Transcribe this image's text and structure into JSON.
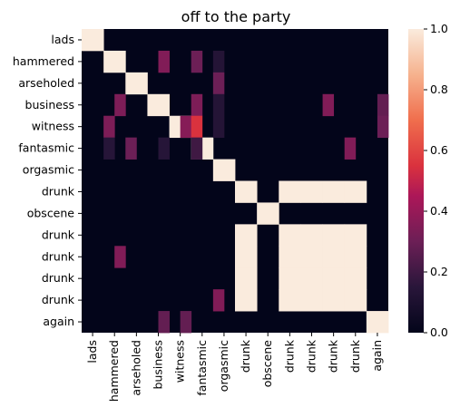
{
  "chart_data": {
    "type": "heatmap",
    "title": "off to the party",
    "xlabel": "",
    "ylabel": "",
    "row_labels": [
      "lads",
      "hammered",
      "arseholed",
      "business",
      "witness",
      "fantasmic",
      "orgasmic",
      "drunk",
      "obscene",
      "drunk",
      "drunk",
      "drunk",
      "drunk",
      "again"
    ],
    "col_labels": [
      "lads",
      "hammered",
      "arseholed",
      "business",
      "witness",
      "fantasmic",
      "orgasmic",
      "drunk",
      "obscene",
      "drunk",
      "drunk",
      "drunk",
      "drunk",
      "again"
    ],
    "values": [
      [
        1,
        0,
        0,
        0,
        0,
        0,
        0,
        0,
        0,
        0,
        0,
        0,
        0,
        0
      ],
      [
        0,
        1,
        0,
        0,
        0,
        0,
        0,
        0,
        0,
        0,
        0,
        0,
        0,
        0
      ],
      [
        0,
        0,
        1,
        0,
        0,
        0,
        0,
        0,
        0,
        0,
        0,
        0,
        0,
        0
      ],
      [
        0,
        0,
        0,
        1,
        0,
        0,
        0,
        0,
        0,
        0,
        0,
        0,
        0,
        0
      ],
      [
        0,
        0,
        0,
        0,
        1,
        0,
        0,
        0,
        0,
        0,
        0,
        0,
        0,
        0
      ],
      [
        0,
        0,
        0,
        0,
        0,
        1,
        0,
        0,
        0,
        0,
        0,
        0,
        0,
        0
      ],
      [
        0,
        0,
        0,
        0,
        0,
        0,
        1,
        0,
        0,
        0,
        0,
        0,
        0,
        0
      ],
      [
        0,
        0,
        0,
        0,
        0,
        0,
        0,
        1,
        0,
        1,
        1,
        1,
        1,
        0
      ],
      [
        0,
        0,
        0,
        0,
        0,
        0,
        0,
        0,
        1,
        0,
        0,
        0,
        0,
        0
      ],
      [
        0,
        0,
        0,
        0,
        0,
        0,
        0,
        1,
        0,
        1,
        1,
        1,
        1,
        0
      ],
      [
        0,
        0,
        0,
        0,
        0,
        0,
        0,
        1,
        0,
        1,
        1,
        1,
        1,
        0
      ],
      [
        0,
        0,
        0,
        0,
        0,
        0,
        0,
        1,
        0,
        1,
        1,
        1,
        1,
        0
      ],
      [
        0,
        0,
        0,
        0,
        0,
        0,
        0,
        1,
        0,
        1,
        1,
        1,
        1,
        0
      ],
      [
        0,
        0,
        0,
        0,
        0,
        0,
        0,
        0,
        0,
        0,
        0,
        0,
        0,
        1
      ]
    ],
    "subcell_cols": 28,
    "subcell_rows": 14,
    "fine_cells": [
      [
        1,
        7,
        0.35
      ],
      [
        1,
        10,
        0.3
      ],
      [
        1,
        12,
        0.13
      ],
      [
        3,
        22,
        0.35
      ],
      [
        2,
        12,
        0.3
      ],
      [
        3,
        3,
        0.34
      ],
      [
        3,
        10,
        0.34
      ],
      [
        3,
        12,
        0.13
      ],
      [
        3,
        27,
        0.28
      ],
      [
        4,
        2,
        0.34
      ],
      [
        4,
        9,
        0.36
      ],
      [
        4,
        10,
        0.55
      ],
      [
        4,
        12,
        0.13
      ],
      [
        4,
        27,
        0.3
      ],
      [
        5,
        2,
        0.14
      ],
      [
        5,
        4,
        0.3
      ],
      [
        5,
        7,
        0.14
      ],
      [
        5,
        10,
        0.2
      ],
      [
        5,
        24,
        0.35
      ],
      [
        10,
        3,
        0.35
      ],
      [
        12,
        12,
        0.35
      ],
      [
        13,
        7,
        0.28
      ],
      [
        13,
        9,
        0.28
      ]
    ],
    "fine_note_cells_in_row_col_units": true,
    "colorbar": {
      "min": 0.0,
      "max": 1.0,
      "ticks": [
        "0.0",
        "0.2",
        "0.4",
        "0.6",
        "0.8",
        "1.0"
      ]
    },
    "grid": false,
    "legend": "colorbar-right"
  }
}
